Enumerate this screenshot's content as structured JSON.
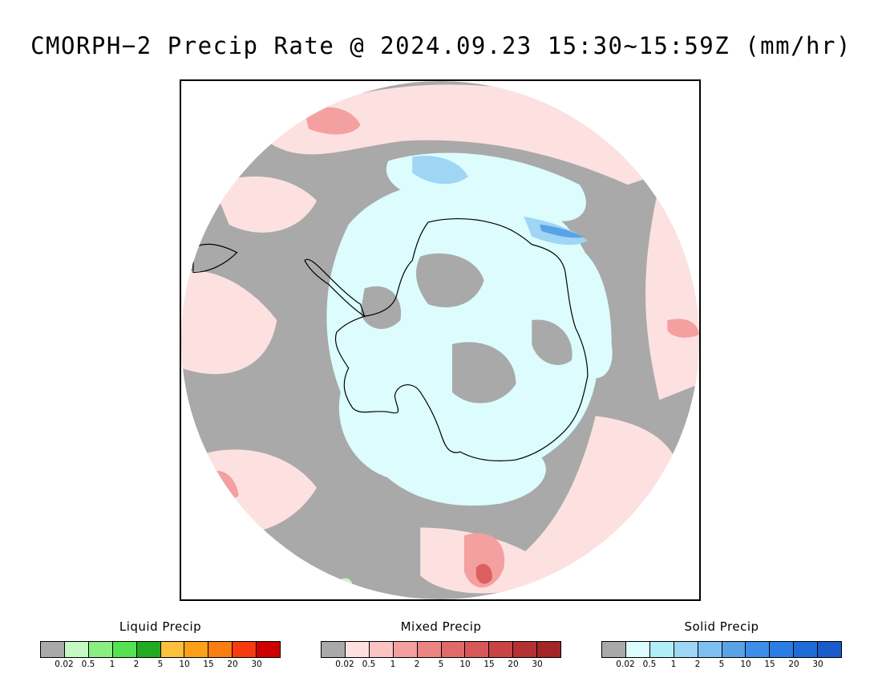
{
  "title": "CMORPH−2 Precip Rate @ 2024.09.23 15:30~15:59Z (mm/hr)",
  "map": {
    "projection": "south-polar-stereographic",
    "colors": {
      "no_precip_gray": "#a9a9a9",
      "mixed_light": "#fde1e1",
      "mixed_mid": "#f4a0a0",
      "mixed_heavy": "#dd6060",
      "solid_light": "#dcfcfd",
      "solid_mid": "#9fd5f5",
      "solid_heavy": "#5aa2e6",
      "liquid_light": "#c5f8c2",
      "coastline": "#000000"
    }
  },
  "legends": [
    {
      "name": "Liquid Precip",
      "ticks": [
        "0.02",
        "0.5",
        "1",
        "2",
        "5",
        "10",
        "15",
        "20",
        "30"
      ],
      "colors": [
        "#a9a9a9",
        "#c5f8c2",
        "#8bee83",
        "#55e252",
        "#22aa22",
        "#fcc03c",
        "#fca01a",
        "#fa7d14",
        "#f83a10",
        "#cf0000"
      ]
    },
    {
      "name": "Mixed Precip",
      "ticks": [
        "0.02",
        "0.5",
        "1",
        "2",
        "5",
        "10",
        "15",
        "20",
        "30"
      ],
      "colors": [
        "#a9a9a9",
        "#fde1e1",
        "#fbc3c3",
        "#f4a0a0",
        "#ec8484",
        "#e06a6a",
        "#d85858",
        "#c84444",
        "#b53030",
        "#a32525"
      ]
    },
    {
      "name": "Solid Precip",
      "ticks": [
        "0.02",
        "0.5",
        "1",
        "2",
        "5",
        "10",
        "15",
        "20",
        "30"
      ],
      "colors": [
        "#a9a9a9",
        "#dcfcfd",
        "#b0eff8",
        "#9fd5f5",
        "#7ec0f2",
        "#5aa2e6",
        "#3c8ee8",
        "#2b7de6",
        "#1f6cd6",
        "#1a5ccc"
      ]
    }
  ]
}
